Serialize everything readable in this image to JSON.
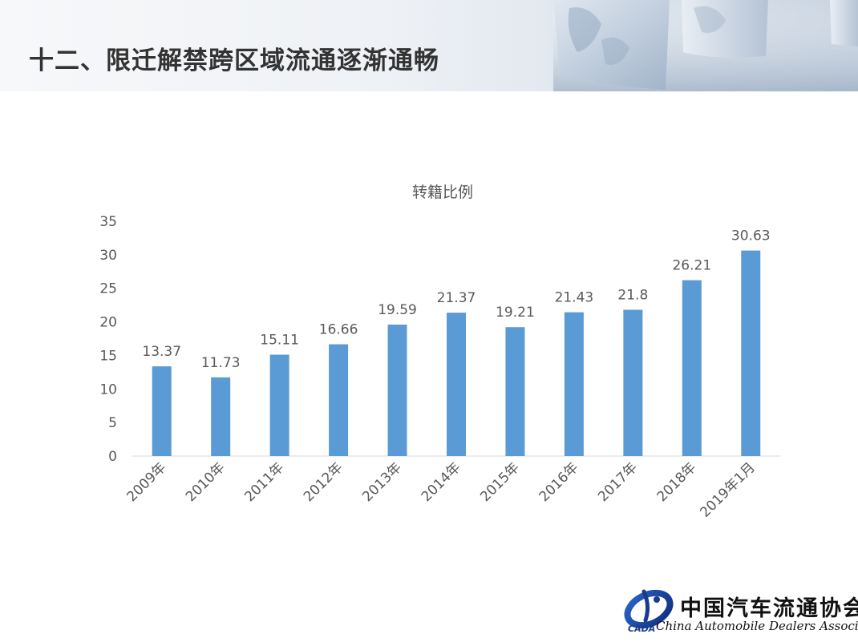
{
  "slide": {
    "title": "十二、限迁解禁跨区域流通逐渐通畅"
  },
  "logo": {
    "name_cn": "中国汽车流通协会",
    "name_en": "China Automobile Dealers Association",
    "abbr": "CADA"
  },
  "chart_data": {
    "type": "bar",
    "title": "转籍比例",
    "categories": [
      "2009年",
      "2010年",
      "2011年",
      "2012年",
      "2013年",
      "2014年",
      "2015年",
      "2016年",
      "2017年",
      "2018年",
      "2019年1月"
    ],
    "values": [
      13.37,
      11.73,
      15.11,
      16.66,
      19.59,
      21.37,
      19.21,
      21.43,
      21.8,
      26.21,
      30.63
    ],
    "data_labels": [
      "13.37",
      "11.73",
      "15.11",
      "16.66",
      "19.59",
      "21.37",
      "19.21",
      "21.43",
      "21.8",
      "26.21",
      "30.63"
    ],
    "ylim": [
      0,
      35
    ],
    "yticks": [
      0,
      5,
      10,
      15,
      20,
      25,
      30,
      35
    ],
    "xlabel": "",
    "ylabel": "",
    "grid": false,
    "legend": "none",
    "bar_color": "#5b9bd5",
    "text_color": "#595959",
    "axis_color": "#d9d9d9"
  }
}
